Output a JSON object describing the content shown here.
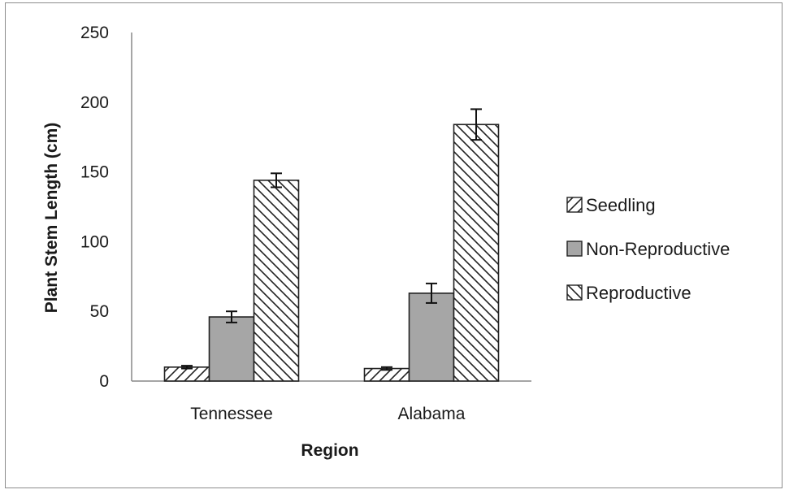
{
  "chart_data": {
    "type": "bar",
    "title": "",
    "xlabel": "Region",
    "ylabel": "Plant Stem Length (cm)",
    "ylim": [
      0,
      250
    ],
    "yticks": [
      0,
      50,
      100,
      150,
      200,
      250
    ],
    "grid": false,
    "legend_position": "right",
    "categories": [
      "Tennessee",
      "Alabama"
    ],
    "series": [
      {
        "name": "Seedling",
        "values": [
          10,
          9
        ],
        "errors": [
          1,
          1
        ],
        "pattern": "forward-hatch",
        "color": "#ffffff"
      },
      {
        "name": "Non-Reproductive",
        "values": [
          46,
          63
        ],
        "errors": [
          4,
          7
        ],
        "pattern": "solid",
        "color": "#a6a6a6"
      },
      {
        "name": "Reproductive",
        "values": [
          144,
          184
        ],
        "errors": [
          5,
          11
        ],
        "pattern": "back-hatch",
        "color": "#ffffff"
      }
    ]
  }
}
